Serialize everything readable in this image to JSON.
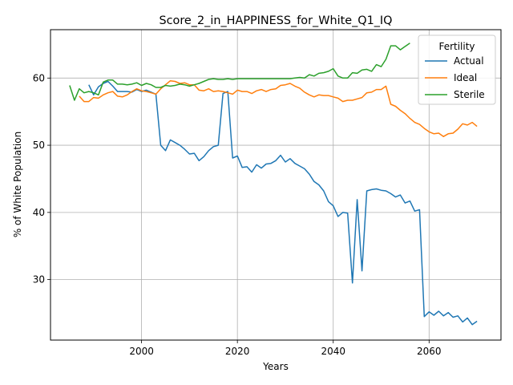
{
  "chart_data": {
    "type": "line",
    "title": "Score_2_in_HAPPINESS_for_White_Q1_IQ",
    "xlabel": "Years",
    "ylabel": "% of White Population",
    "xlim": [
      1981,
      2075
    ],
    "ylim": [
      21.0,
      67.2
    ],
    "xticks": [
      2000,
      2020,
      2040,
      2060
    ],
    "yticks": [
      30,
      40,
      50,
      60
    ],
    "grid": true,
    "legend": {
      "title": "Fertility",
      "position": "top-right"
    },
    "series": [
      {
        "name": "Actual",
        "color": "#1f77b4",
        "points": [
          [
            1989,
            59.0
          ],
          [
            1990,
            57.5
          ],
          [
            1991,
            58.7
          ],
          [
            1992,
            59.2
          ],
          [
            1993,
            59.5
          ],
          [
            1994,
            58.8
          ],
          [
            1995,
            58.0
          ],
          [
            1996,
            58.0
          ],
          [
            1997,
            58.0
          ],
          [
            1998,
            57.9
          ],
          [
            1999,
            58.3
          ],
          [
            2000,
            58.0
          ],
          [
            2001,
            58.2
          ],
          [
            2002,
            57.9
          ],
          [
            2003,
            57.6
          ],
          [
            2004,
            50.0
          ],
          [
            2005,
            49.2
          ],
          [
            2006,
            50.8
          ],
          [
            2007,
            50.4
          ],
          [
            2008,
            50.0
          ],
          [
            2009,
            49.4
          ],
          [
            2010,
            48.7
          ],
          [
            2011,
            48.8
          ],
          [
            2012,
            47.7
          ],
          [
            2013,
            48.3
          ],
          [
            2014,
            49.2
          ],
          [
            2015,
            49.8
          ],
          [
            2016,
            50.0
          ],
          [
            2017,
            57.7
          ],
          [
            2018,
            58.0
          ],
          [
            2019,
            48.1
          ],
          [
            2020,
            48.4
          ],
          [
            2021,
            46.7
          ],
          [
            2022,
            46.8
          ],
          [
            2023,
            46.0
          ],
          [
            2024,
            47.1
          ],
          [
            2025,
            46.6
          ],
          [
            2026,
            47.2
          ],
          [
            2027,
            47.3
          ],
          [
            2028,
            47.7
          ],
          [
            2029,
            48.5
          ],
          [
            2030,
            47.5
          ],
          [
            2031,
            48.0
          ],
          [
            2032,
            47.3
          ],
          [
            2033,
            46.9
          ],
          [
            2034,
            46.5
          ],
          [
            2035,
            45.7
          ],
          [
            2036,
            44.6
          ],
          [
            2037,
            44.1
          ],
          [
            2038,
            43.2
          ],
          [
            2039,
            41.6
          ],
          [
            2040,
            41.0
          ],
          [
            2041,
            39.4
          ],
          [
            2042,
            40.0
          ],
          [
            2043,
            39.9
          ],
          [
            2044,
            29.5
          ],
          [
            2045,
            41.9
          ],
          [
            2046,
            31.3
          ],
          [
            2047,
            43.2
          ],
          [
            2048,
            43.4
          ],
          [
            2049,
            43.5
          ],
          [
            2050,
            43.3
          ],
          [
            2051,
            43.2
          ],
          [
            2052,
            42.8
          ],
          [
            2053,
            42.3
          ],
          [
            2054,
            42.6
          ],
          [
            2055,
            41.4
          ],
          [
            2056,
            41.7
          ],
          [
            2057,
            40.2
          ],
          [
            2058,
            40.4
          ],
          [
            2059,
            24.5
          ],
          [
            2060,
            25.2
          ],
          [
            2061,
            24.7
          ],
          [
            2062,
            25.3
          ],
          [
            2063,
            24.6
          ],
          [
            2064,
            25.1
          ],
          [
            2065,
            24.4
          ],
          [
            2066,
            24.6
          ],
          [
            2067,
            23.7
          ],
          [
            2068,
            24.3
          ],
          [
            2069,
            23.3
          ],
          [
            2070,
            23.8
          ]
        ]
      },
      {
        "name": "Ideal",
        "color": "#ff7f0e",
        "points": [
          [
            1987,
            57.3
          ],
          [
            1988,
            56.5
          ],
          [
            1989,
            56.5
          ],
          [
            1990,
            57.1
          ],
          [
            1991,
            57.0
          ],
          [
            1992,
            57.5
          ],
          [
            1993,
            57.8
          ],
          [
            1994,
            58.0
          ],
          [
            1995,
            57.3
          ],
          [
            1996,
            57.2
          ],
          [
            1997,
            57.5
          ],
          [
            1998,
            58.0
          ],
          [
            1999,
            58.4
          ],
          [
            2000,
            58.1
          ],
          [
            2001,
            58.0
          ],
          [
            2002,
            57.8
          ],
          [
            2003,
            57.6
          ],
          [
            2004,
            58.4
          ],
          [
            2005,
            59.0
          ],
          [
            2006,
            59.6
          ],
          [
            2007,
            59.5
          ],
          [
            2008,
            59.2
          ],
          [
            2009,
            59.3
          ],
          [
            2010,
            59.0
          ],
          [
            2011,
            59.0
          ],
          [
            2012,
            58.2
          ],
          [
            2013,
            58.1
          ],
          [
            2014,
            58.4
          ],
          [
            2015,
            58.0
          ],
          [
            2016,
            58.1
          ],
          [
            2017,
            58.0
          ],
          [
            2018,
            57.8
          ],
          [
            2019,
            57.6
          ],
          [
            2020,
            58.2
          ],
          [
            2021,
            58.0
          ],
          [
            2022,
            58.0
          ],
          [
            2023,
            57.7
          ],
          [
            2024,
            58.1
          ],
          [
            2025,
            58.3
          ],
          [
            2026,
            58.0
          ],
          [
            2027,
            58.3
          ],
          [
            2028,
            58.4
          ],
          [
            2029,
            58.9
          ],
          [
            2030,
            59.0
          ],
          [
            2031,
            59.2
          ],
          [
            2032,
            58.8
          ],
          [
            2033,
            58.5
          ],
          [
            2034,
            57.9
          ],
          [
            2035,
            57.5
          ],
          [
            2036,
            57.2
          ],
          [
            2037,
            57.5
          ],
          [
            2038,
            57.4
          ],
          [
            2039,
            57.4
          ],
          [
            2040,
            57.2
          ],
          [
            2041,
            57.0
          ],
          [
            2042,
            56.5
          ],
          [
            2043,
            56.7
          ],
          [
            2044,
            56.7
          ],
          [
            2045,
            56.9
          ],
          [
            2046,
            57.1
          ],
          [
            2047,
            57.8
          ],
          [
            2048,
            57.9
          ],
          [
            2049,
            58.3
          ],
          [
            2050,
            58.3
          ],
          [
            2051,
            58.8
          ],
          [
            2052,
            56.1
          ],
          [
            2053,
            55.8
          ],
          [
            2054,
            55.2
          ],
          [
            2055,
            54.7
          ],
          [
            2056,
            54.0
          ],
          [
            2057,
            53.4
          ],
          [
            2058,
            53.1
          ],
          [
            2059,
            52.5
          ],
          [
            2060,
            52.0
          ],
          [
            2061,
            51.7
          ],
          [
            2062,
            51.8
          ],
          [
            2063,
            51.3
          ],
          [
            2064,
            51.7
          ],
          [
            2065,
            51.8
          ],
          [
            2066,
            52.4
          ],
          [
            2067,
            53.2
          ],
          [
            2068,
            53.0
          ],
          [
            2069,
            53.4
          ],
          [
            2070,
            52.8
          ]
        ]
      },
      {
        "name": "Sterile",
        "color": "#2ca02c",
        "points": [
          [
            1985,
            58.9
          ],
          [
            1986,
            56.7
          ],
          [
            1987,
            58.4
          ],
          [
            1988,
            57.8
          ],
          [
            1989,
            58.0
          ],
          [
            1990,
            57.8
          ],
          [
            1991,
            57.5
          ],
          [
            1992,
            59.4
          ],
          [
            1993,
            59.7
          ],
          [
            1994,
            59.7
          ],
          [
            1995,
            59.1
          ],
          [
            1996,
            59.1
          ],
          [
            1997,
            59.0
          ],
          [
            1998,
            59.1
          ],
          [
            1999,
            59.3
          ],
          [
            2000,
            58.9
          ],
          [
            2001,
            59.2
          ],
          [
            2002,
            59.0
          ],
          [
            2003,
            58.6
          ],
          [
            2004,
            58.6
          ],
          [
            2005,
            58.9
          ],
          [
            2006,
            58.8
          ],
          [
            2007,
            58.9
          ],
          [
            2008,
            59.1
          ],
          [
            2009,
            59.0
          ],
          [
            2010,
            58.8
          ],
          [
            2011,
            59.0
          ],
          [
            2012,
            59.2
          ],
          [
            2013,
            59.5
          ],
          [
            2014,
            59.8
          ],
          [
            2015,
            59.9
          ],
          [
            2016,
            59.8
          ],
          [
            2017,
            59.8
          ],
          [
            2018,
            59.9
          ],
          [
            2019,
            59.8
          ],
          [
            2020,
            59.9
          ],
          [
            2022,
            59.9
          ],
          [
            2024,
            59.9
          ],
          [
            2026,
            59.9
          ],
          [
            2028,
            59.9
          ],
          [
            2030,
            59.9
          ],
          [
            2031,
            59.9
          ],
          [
            2032,
            60.0
          ],
          [
            2033,
            60.1
          ],
          [
            2034,
            60.0
          ],
          [
            2035,
            60.5
          ],
          [
            2036,
            60.3
          ],
          [
            2037,
            60.7
          ],
          [
            2038,
            60.8
          ],
          [
            2039,
            61.0
          ],
          [
            2040,
            61.4
          ],
          [
            2041,
            60.3
          ],
          [
            2042,
            60.0
          ],
          [
            2043,
            60.0
          ],
          [
            2044,
            60.8
          ],
          [
            2045,
            60.7
          ],
          [
            2046,
            61.2
          ],
          [
            2047,
            61.3
          ],
          [
            2048,
            61.0
          ],
          [
            2049,
            62.0
          ],
          [
            2050,
            61.7
          ],
          [
            2051,
            62.8
          ],
          [
            2052,
            64.8
          ],
          [
            2053,
            64.8
          ],
          [
            2054,
            64.2
          ],
          [
            2055,
            64.7
          ],
          [
            2056,
            65.2
          ]
        ]
      }
    ]
  }
}
